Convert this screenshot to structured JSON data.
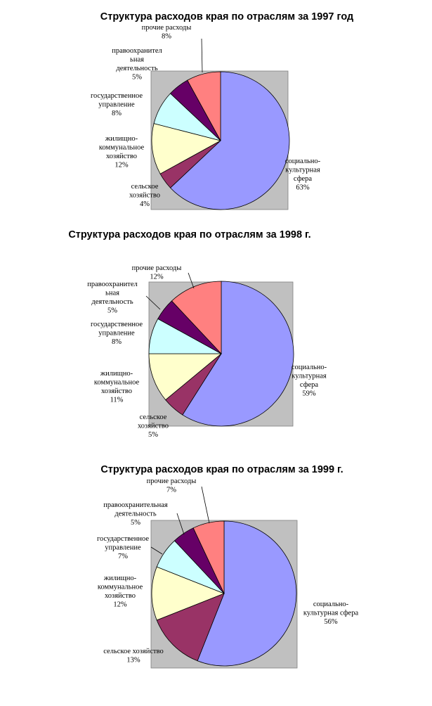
{
  "chart_data": [
    {
      "type": "pie",
      "title": "Структура расходов края по отраслям за 1997 год",
      "slices": [
        {
          "name": "социально-культурная сфера",
          "label_lines": [
            "социально-",
            "культурная",
            "сфера"
          ],
          "value_label": "63%",
          "value": 63,
          "color": "#9999ff"
        },
        {
          "name": "сельское хозяйство",
          "label_lines": [
            "сельское",
            "хозяйство"
          ],
          "value_label": "4%",
          "value": 4,
          "color": "#993366"
        },
        {
          "name": "жилищно-коммунальное хозяйство",
          "label_lines": [
            "жилищно-",
            "коммунальное",
            "хозяйство"
          ],
          "value_label": "12%",
          "value": 12,
          "color": "#ffffcc"
        },
        {
          "name": "государственное управление",
          "label_lines": [
            "государственное",
            "управление"
          ],
          "value_label": "8%",
          "value": 8,
          "color": "#ccffff"
        },
        {
          "name": "правоохранительная деятельность",
          "label_lines": [
            "правоохранител",
            "ьная",
            "деятельность"
          ],
          "value_label": "5%",
          "value": 5,
          "color": "#660066"
        },
        {
          "name": "прочие расходы",
          "label_lines": [
            "прочие расходы"
          ],
          "value_label": "8%",
          "value": 8,
          "color": "#ff8080"
        }
      ]
    },
    {
      "type": "pie",
      "title": "Структура расходов края по отраслям за 1998 г.",
      "slices": [
        {
          "name": "социально-культурная сфера",
          "label_lines": [
            "социально-",
            "культурная",
            "сфера"
          ],
          "value_label": "59%",
          "value": 59,
          "color": "#9999ff"
        },
        {
          "name": "сельское хозяйство",
          "label_lines": [
            "сельское",
            "хозяйство"
          ],
          "value_label": "5%",
          "value": 5,
          "color": "#993366"
        },
        {
          "name": "жилищно-коммунальное хозяйство",
          "label_lines": [
            "жилищно-",
            "коммунальное",
            "хозяйство"
          ],
          "value_label": "11%",
          "value": 11,
          "color": "#ffffcc"
        },
        {
          "name": "государственное управление",
          "label_lines": [
            "государственное",
            "управление"
          ],
          "value_label": "8%",
          "value": 8,
          "color": "#ccffff"
        },
        {
          "name": "правоохранительная деятельность",
          "label_lines": [
            "правоохранител",
            "ьная",
            "деятельность"
          ],
          "value_label": "5%",
          "value": 5,
          "color": "#660066"
        },
        {
          "name": "прочие расходы",
          "label_lines": [
            "прочие расходы"
          ],
          "value_label": "12%",
          "value": 12,
          "color": "#ff8080"
        }
      ]
    },
    {
      "type": "pie",
      "title": "Структура расходов края по отраслям за 1999 г.",
      "slices": [
        {
          "name": "социально-культурная сфера",
          "label_lines": [
            "социально-",
            "культурная сфера"
          ],
          "value_label": "56%",
          "value": 56,
          "color": "#9999ff"
        },
        {
          "name": "сельское хозяйство",
          "label_lines": [
            "сельское хозяйство"
          ],
          "value_label": "13%",
          "value": 13,
          "color": "#993366"
        },
        {
          "name": "жилищно-коммунальное хозяйство",
          "label_lines": [
            "жилищно-",
            "коммунальное",
            "хозяйство"
          ],
          "value_label": "12%",
          "value": 12,
          "color": "#ffffcc"
        },
        {
          "name": "государственное управление",
          "label_lines": [
            "государственное",
            "управление"
          ],
          "value_label": "7%",
          "value": 7,
          "color": "#ccffff"
        },
        {
          "name": "правоохранительная деятельность",
          "label_lines": [
            "правоохранительная",
            "деятельность"
          ],
          "value_label": "5%",
          "value": 5,
          "color": "#660066"
        },
        {
          "name": "прочие расходы",
          "label_lines": [
            "прочие расходы"
          ],
          "value_label": "7%",
          "value": 7,
          "color": "#ff8080"
        }
      ]
    }
  ]
}
